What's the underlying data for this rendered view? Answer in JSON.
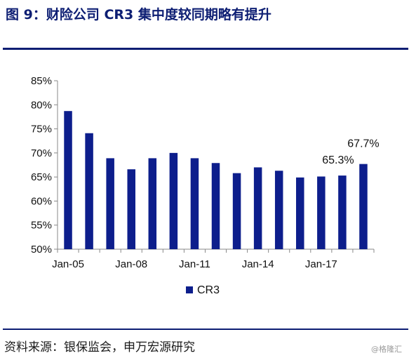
{
  "header": {
    "title": "图 9：财险公司 CR3 集中度较同期略有提升"
  },
  "footer": {
    "source": "资料来源：银保监会，申万宏源研究",
    "watermark": "@格隆汇"
  },
  "chart_data": {
    "type": "bar",
    "title": "",
    "xlabel": "",
    "ylabel": "",
    "x_tick_labels": [
      "Jan-05",
      "Jan-08",
      "Jan-11",
      "Jan-14",
      "Jan-17"
    ],
    "y_tick_labels": [
      "50%",
      "55%",
      "60%",
      "65%",
      "70%",
      "75%",
      "80%",
      "85%"
    ],
    "ylim": [
      50,
      85
    ],
    "grid": false,
    "legend_position": "bottom-center",
    "colors": {
      "bar": "#0d1e8c"
    },
    "series": [
      {
        "name": "CR3",
        "values": [
          78.7,
          74.1,
          68.9,
          66.6,
          68.9,
          70.0,
          68.9,
          67.9,
          65.8,
          67.0,
          66.3,
          64.9,
          65.1,
          65.3,
          67.7
        ]
      }
    ],
    "data_labels": [
      {
        "index": 13,
        "text": "65.3%"
      },
      {
        "index": 14,
        "text": "67.7%"
      }
    ]
  }
}
